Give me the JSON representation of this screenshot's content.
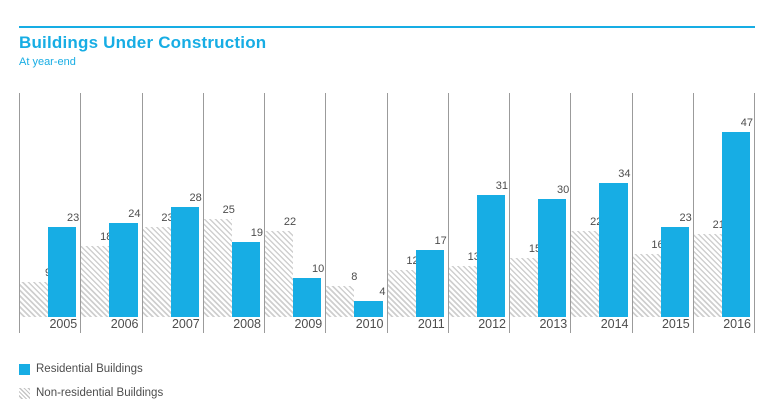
{
  "header": {
    "title": "Buildings Under Construction",
    "subtitle": "At year-end"
  },
  "colors": {
    "accent": "#17ade4",
    "gridline": "#9b9b9b",
    "text": "#4d4d4d",
    "hatch_line": "#cfcfcf"
  },
  "legend": [
    {
      "label": "Residential Buildings",
      "swatch": "residential-solid-cyan"
    },
    {
      "label": "Non-residential Buildings",
      "swatch": "non-residential-diagonal-hatch"
    }
  ],
  "chart_data": {
    "type": "bar",
    "title": "Buildings Under Construction",
    "subtitle": "At year-end",
    "categories": [
      "2005",
      "2006",
      "2007",
      "2008",
      "2009",
      "2010",
      "2011",
      "2012",
      "2013",
      "2014",
      "2015",
      "2016"
    ],
    "series": [
      {
        "name": "Non-residential Buildings",
        "style": "hatched",
        "values": [
          9,
          18,
          23,
          25,
          22,
          8,
          12,
          13,
          15,
          22,
          16,
          21
        ]
      },
      {
        "name": "Residential Buildings",
        "style": "solid-cyan",
        "values": [
          23,
          24,
          28,
          19,
          10,
          4,
          17,
          31,
          30,
          34,
          23,
          47
        ]
      }
    ],
    "value_labels": true,
    "xlabel": "",
    "ylabel": "",
    "ylim": [
      0,
      57
    ],
    "grid": "vertical-separators-only",
    "legend_position": "bottom-left"
  }
}
